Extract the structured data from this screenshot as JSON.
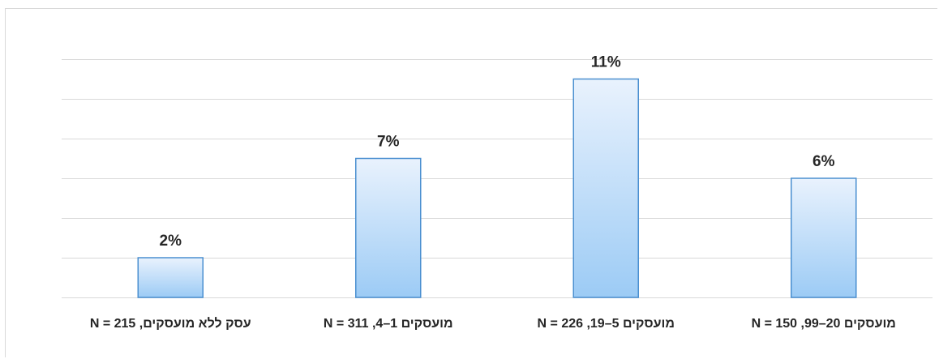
{
  "chart_data": {
    "type": "bar",
    "title": "",
    "xlabel": "",
    "ylabel": "",
    "categories": [
      "עסק ללא מועסקים,  N = 215",
      "מועסקים 1–4, N = 311",
      "מועסקים 5–19, N = 226",
      "מועסקים 20–99, N = 150"
    ],
    "values": [
      2,
      7,
      11,
      6
    ],
    "value_labels": [
      "2%",
      "7%",
      "11%",
      "6%"
    ],
    "ylim": [
      0,
      12
    ],
    "gridlines": [
      0,
      2,
      4,
      6,
      8,
      10,
      12
    ],
    "grid": true,
    "legend": "none",
    "colors": {
      "bar_top": "#e9f2fd",
      "bar_bottom": "#9ccbf5",
      "bar_border": "#4a8fd0",
      "grid": "#d9d9d9",
      "text": "#262626"
    }
  }
}
